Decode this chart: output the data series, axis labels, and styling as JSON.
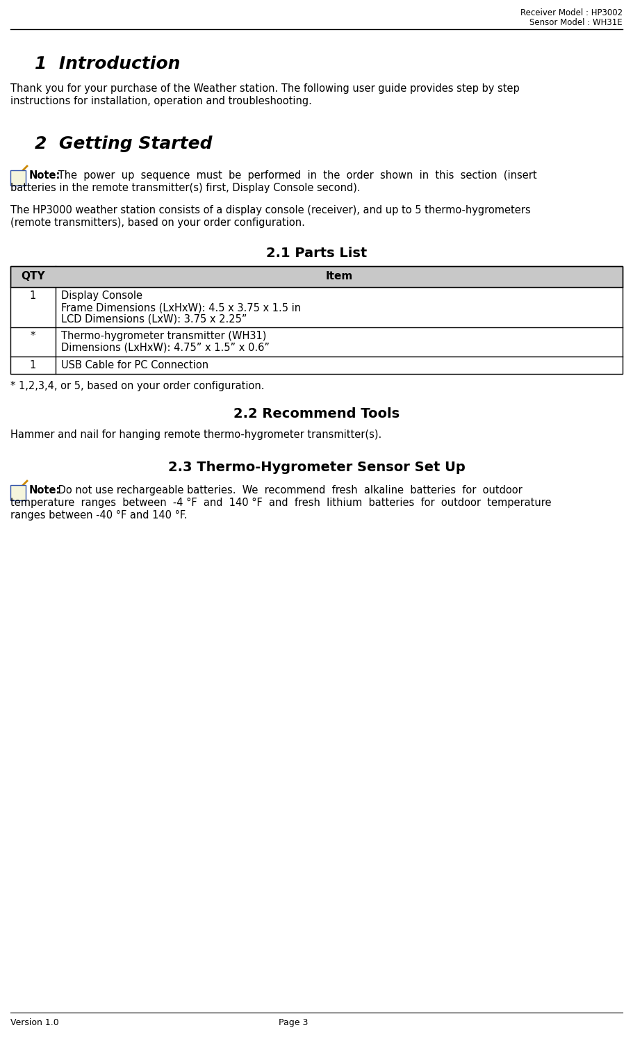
{
  "header_line1": "Receiver Model : HP3002",
  "header_line2": "Sensor Model : WH31E",
  "footer_left": "Version 1.0",
  "footer_center": "Page 3",
  "section1_title": "1  Introduction",
  "section1_body1": "Thank you for your purchase of the Weather station. The following user guide provides step by step",
  "section1_body2": "instructions for installation, operation and troubleshooting.",
  "section2_title": "2  Getting Started",
  "note_bold": "Note:",
  "section2_note1": " The  power  up  sequence  must  be  performed  in  the  order  shown  in  this  section  (insert",
  "section2_note2": "batteries in the remote transmitter(s) first, Display Console second).",
  "section2_body1": "The HP3000 weather station consists of a display console (receiver), and up to 5 thermo-hygrometers",
  "section2_body2": "(remote transmitters), based on your order configuration.",
  "section21_title": "2.1 Parts List",
  "table_header_qty": "QTY",
  "table_header_item": "Item",
  "row1_qty": "1",
  "row1_item1": "Display Console",
  "row1_item2": "Frame Dimensions (LxHxW): 4.5 x 3.75 x 1.5 in",
  "row1_item3": "LCD Dimensions (LxW): 3.75 x 2.25”",
  "row2_qty": "*",
  "row2_item1": "Thermo-hygrometer transmitter (WH31)",
  "row2_item2": "Dimensions (LxHxW): 4.75” x 1.5” x 0.6”",
  "row3_qty": "1",
  "row3_item1": "USB Cable for PC Connection",
  "table_footnote": "* 1,2,3,4, or 5, based on your order configuration.",
  "section22_title": "2.2 Recommend Tools",
  "section22_body": "Hammer and nail for hanging remote thermo-hygrometer transmitter(s).",
  "section23_title": "2.3 Thermo-Hygrometer Sensor Set Up",
  "note2_bold": "Note:",
  "section23_note1": " Do not use rechargeable batteries.  We  recommend  fresh  alkaline  batteries  for  outdoor",
  "section23_note2": "temperature  ranges  between  -4 °F  and  140 °F  and  fresh  lithium  batteries  for  outdoor  temperature",
  "section23_note3": "ranges between -40 °F and 140 °F.",
  "bg_color": "#ffffff",
  "text_color": "#000000",
  "table_header_bg": "#c8c8c8",
  "table_border_color": "#000000",
  "dpi": 100,
  "fig_w": 9.11,
  "fig_h": 14.95
}
